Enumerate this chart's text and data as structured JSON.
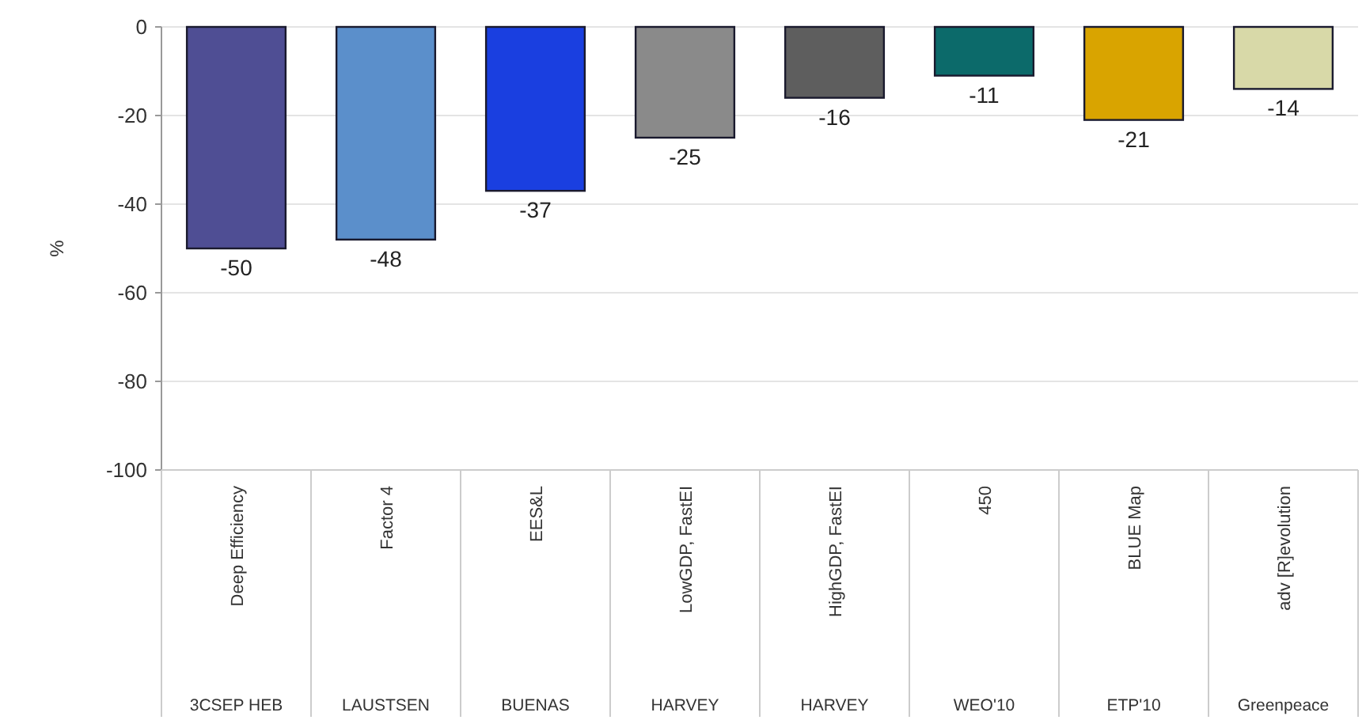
{
  "chart_data": {
    "type": "bar",
    "ylabel": "%",
    "categories": [
      "Deep Efficiency",
      "Factor 4",
      "EES&L",
      "LowGDP, FastEI",
      "HighGDP, FastEI",
      "450",
      "BLUE Map",
      "adv [R]evolution"
    ],
    "values": [
      -50,
      -48,
      -37,
      -25,
      -16,
      -11,
      -21,
      -14
    ],
    "colors": [
      "#4f4e94",
      "#5b8fcb",
      "#1a3fe0",
      "#8a8a8a",
      "#5e5e5e",
      "#0c6a6a",
      "#d9a400",
      "#d8d9a8"
    ],
    "annotations": [
      "3CSEP HEB",
      "LAUSTSEN",
      "BUENAS",
      "HARVEY",
      "HARVEY",
      "WEO'10",
      "ETP'10",
      "Greenpeace"
    ],
    "ylim": [
      -100,
      0
    ],
    "yticks": [
      -100,
      -80,
      -60,
      -40,
      -20,
      0
    ],
    "grid": "y",
    "data_labels": true
  }
}
